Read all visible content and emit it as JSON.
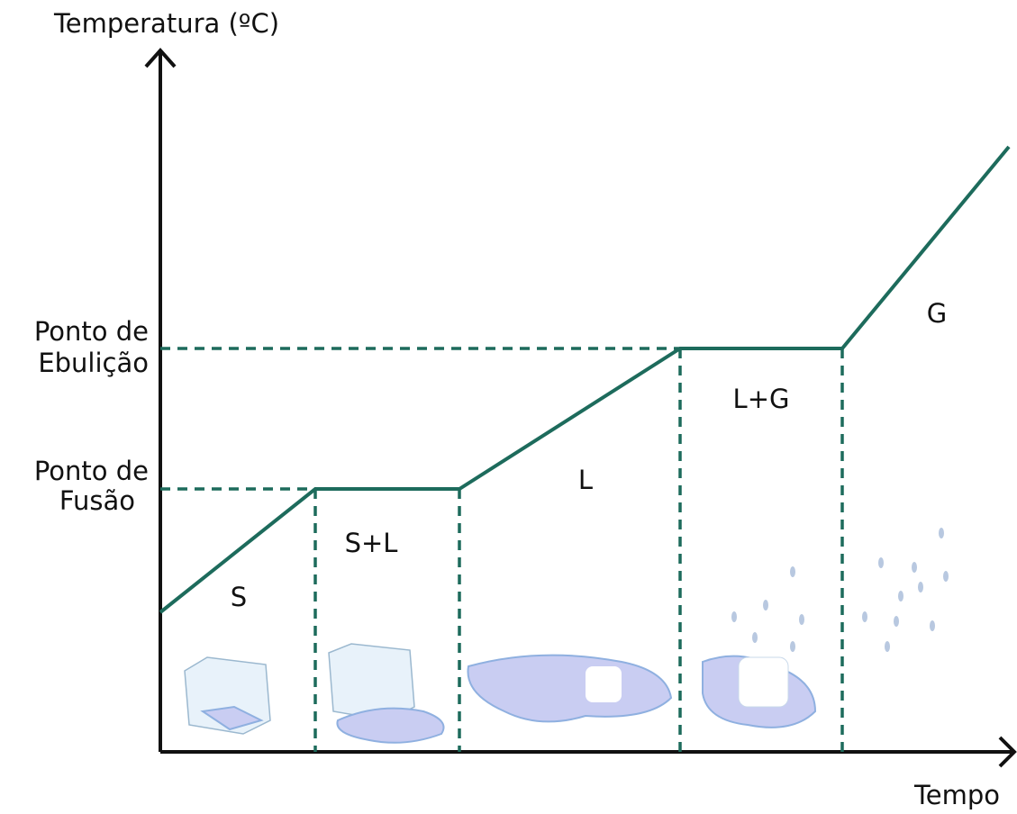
{
  "axes": {
    "y_label": "Temperatura (ºC)",
    "x_label": "Tempo"
  },
  "levels": [
    {
      "lines": [
        "Ponto de",
        "Ebulição"
      ]
    },
    {
      "lines": [
        "Ponto de",
        "Fusão"
      ]
    }
  ],
  "regions": [
    "S",
    "S+L",
    "L",
    "L+G",
    "G"
  ]
}
